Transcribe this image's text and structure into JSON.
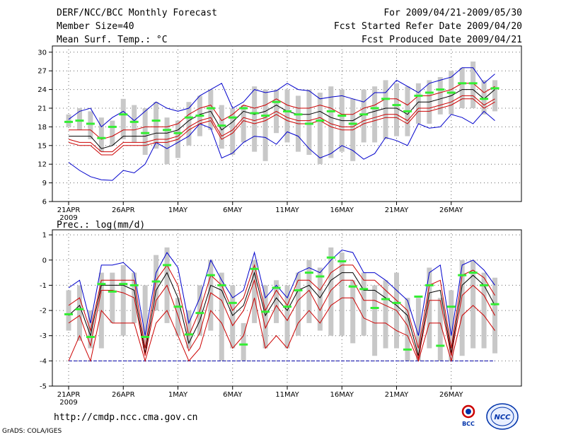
{
  "header": {
    "title": "DERF/NCC/BCC Monthly Forecast",
    "member_size": "Member Size=40",
    "variable": "Mean Surf. Temp.: °C",
    "period": "For 2009/04/21-2009/05/30",
    "refer_date": "Fcst Started Refer Date 2009/04/20",
    "produced_date": "Fcst Produced Date 2009/04/21"
  },
  "footer": {
    "url": "http://cmdp.ncc.cma.gov.cn",
    "credit": "GrADS: COLA/IGES",
    "logo_bcc": "BCC",
    "logo_ncc": "NCC"
  },
  "colors": {
    "ensemble_bar": "#c8c8c8",
    "mean_line": "#000000",
    "spread_line": "#cc0000",
    "envelope_line": "#0000cc",
    "marker": "#33ee33",
    "baseline": "#0000aa",
    "grid": "#666666"
  },
  "chart_data": [
    {
      "type": "line",
      "title": "Mean Surf. Temp.: °C",
      "ylim": [
        6,
        31
      ],
      "yticks": [
        "6",
        "9",
        "12",
        "15",
        "18",
        "21",
        "24",
        "27",
        "30"
      ],
      "ytick_values": [
        6,
        9,
        12,
        15,
        18,
        21,
        24,
        27,
        30
      ],
      "xtick_labels": [
        "21APR",
        "26APR",
        "1MAY",
        "6MAY",
        "11MAY",
        "16MAY",
        "21MAY",
        "26MAY"
      ],
      "xtick_days": [
        1,
        6,
        11,
        16,
        21,
        26,
        31,
        36
      ],
      "x_year_label": "2009",
      "x": [
        1,
        2,
        3,
        4,
        5,
        6,
        7,
        8,
        9,
        10,
        11,
        12,
        13,
        14,
        15,
        16,
        17,
        18,
        19,
        20,
        21,
        22,
        23,
        24,
        25,
        26,
        27,
        28,
        29,
        30,
        31,
        32,
        33,
        34,
        35,
        36,
        37,
        38,
        39,
        40
      ],
      "series": [
        {
          "name": "max",
          "values": [
            12.3,
            11.0,
            10.0,
            9.5,
            9.4,
            11.0,
            10.6,
            12.0,
            15.5,
            14.5,
            15.5,
            16.5,
            18.5,
            17.8,
            13.0,
            13.8,
            15.5,
            16.5,
            16.3,
            15.2,
            17.2,
            16.5,
            14.5,
            13.0,
            13.7,
            15.0,
            14.2,
            12.8,
            13.7,
            16.3,
            15.8,
            15.0,
            18.5,
            17.8,
            18.0,
            20.0,
            19.5,
            18.5,
            20.5,
            19.0
          ]
        },
        {
          "name": "envelope_high",
          "values": [
            19.2,
            20.5,
            21.0,
            18.0,
            19.5,
            20.5,
            19.0,
            20.5,
            22.0,
            21.0,
            20.5,
            21.0,
            23.0,
            24.0,
            25.0,
            21.0,
            22.0,
            24.0,
            23.5,
            23.8,
            25.0,
            24.0,
            23.8,
            22.5,
            22.8,
            23.0,
            22.5,
            22.0,
            23.5,
            23.5,
            25.5,
            24.5,
            23.5,
            25.0,
            25.5,
            26.0,
            27.5,
            27.5,
            25.0,
            26.5
          ]
        },
        {
          "name": "upper",
          "values": [
            17.5,
            17.5,
            17.5,
            16.0,
            16.5,
            17.5,
            17.5,
            18.0,
            18.0,
            18.0,
            18.5,
            20.0,
            21.0,
            21.5,
            19.0,
            20.0,
            21.5,
            21.0,
            21.5,
            22.5,
            21.5,
            21.0,
            21.0,
            21.5,
            21.0,
            20.0,
            20.0,
            21.0,
            21.5,
            22.5,
            22.5,
            21.5,
            23.0,
            23.0,
            23.5,
            24.0,
            25.0,
            25.0,
            23.5,
            24.5
          ]
        },
        {
          "name": "mean",
          "values": [
            16.5,
            16.5,
            16.5,
            14.5,
            15.0,
            16.5,
            16.5,
            16.5,
            17.0,
            17.0,
            17.5,
            19.0,
            20.0,
            20.5,
            17.5,
            18.8,
            20.5,
            20.0,
            20.5,
            21.5,
            20.5,
            20.0,
            20.0,
            20.5,
            19.5,
            19.0,
            19.0,
            20.0,
            20.5,
            21.0,
            21.0,
            20.0,
            22.0,
            22.0,
            22.5,
            23.0,
            24.0,
            24.0,
            22.5,
            24.0
          ]
        },
        {
          "name": "lower",
          "values": [
            16.0,
            15.5,
            15.5,
            14.0,
            14.0,
            15.5,
            15.5,
            15.5,
            16.0,
            16.0,
            16.5,
            18.0,
            19.0,
            19.5,
            16.5,
            17.5,
            19.5,
            19.0,
            19.5,
            20.5,
            19.5,
            19.0,
            19.0,
            19.5,
            18.5,
            18.0,
            18.0,
            19.0,
            19.5,
            20.0,
            20.0,
            19.0,
            21.0,
            21.0,
            21.5,
            22.0,
            23.0,
            23.0,
            21.5,
            22.5
          ]
        },
        {
          "name": "lowest",
          "values": [
            15.5,
            15.0,
            15.0,
            13.5,
            13.5,
            15.0,
            15.0,
            15.0,
            15.5,
            15.5,
            16.0,
            17.5,
            18.5,
            19.0,
            16.0,
            17.0,
            19.0,
            18.5,
            19.0,
            20.0,
            19.0,
            18.5,
            18.5,
            19.0,
            18.0,
            17.5,
            17.5,
            18.5,
            19.0,
            19.5,
            19.5,
            18.5,
            20.5,
            20.5,
            21.0,
            21.5,
            22.5,
            22.5,
            21.0,
            22.0
          ]
        }
      ],
      "markers": [
        18.8,
        19.0,
        18.5,
        16.2,
        18.0,
        20.0,
        18.8,
        17.0,
        19.0,
        17.5,
        17.0,
        19.5,
        19.8,
        21.0,
        18.2,
        19.5,
        21.0,
        20.2,
        19.8,
        22.0,
        20.5,
        20.0,
        18.5,
        19.0,
        20.5,
        19.8,
        18.5,
        20.0,
        21.0,
        22.5,
        21.5,
        20.5,
        23.0,
        23.5,
        24.0,
        23.5,
        25.0,
        25.0,
        22.5,
        24.2
      ],
      "bars": [
        [
          18.0,
          20.0
        ],
        [
          17.5,
          21.0
        ],
        [
          16.0,
          20.5
        ],
        [
          14.0,
          19.5
        ],
        [
          15.0,
          19.0
        ],
        [
          16.0,
          22.5
        ],
        [
          15.5,
          21.5
        ],
        [
          13.5,
          21.0
        ],
        [
          14.5,
          22.0
        ],
        [
          12.0,
          19.5
        ],
        [
          13.0,
          19.0
        ],
        [
          15.0,
          22.0
        ],
        [
          16.5,
          23.0
        ],
        [
          17.5,
          24.0
        ],
        [
          14.5,
          21.5
        ],
        [
          13.5,
          21.0
        ],
        [
          15.5,
          21.5
        ],
        [
          14.0,
          24.5
        ],
        [
          12.5,
          24.0
        ],
        [
          17.0,
          24.0
        ],
        [
          15.5,
          24.0
        ],
        [
          14.0,
          23.0
        ],
        [
          13.5,
          24.0
        ],
        [
          12.0,
          23.5
        ],
        [
          13.0,
          24.5
        ],
        [
          14.0,
          24.0
        ],
        [
          12.5,
          22.5
        ],
        [
          15.5,
          24.0
        ],
        [
          15.5,
          24.5
        ],
        [
          16.0,
          25.5
        ],
        [
          16.5,
          25.0
        ],
        [
          16.5,
          24.5
        ],
        [
          18.5,
          25.0
        ],
        [
          18.5,
          25.5
        ],
        [
          20.0,
          26.0
        ],
        [
          20.0,
          27.0
        ],
        [
          21.0,
          27.5
        ],
        [
          21.0,
          28.5
        ],
        [
          20.0,
          25.5
        ],
        [
          20.5,
          25.5
        ]
      ]
    },
    {
      "type": "line",
      "title": "Prec.: log(mm/d)",
      "ylim": [
        -5,
        1.2
      ],
      "yticks": [
        "-5",
        "-4",
        "-3",
        "-2",
        "-1",
        "0",
        "1"
      ],
      "ytick_values": [
        -5,
        -4,
        -3,
        -2,
        -1,
        0,
        1
      ],
      "xtick_labels": [
        "21APR",
        "26APR",
        "1MAY",
        "6MAY",
        "11MAY",
        "16MAY",
        "21MAY",
        "26MAY"
      ],
      "xtick_days": [
        1,
        6,
        11,
        16,
        21,
        26,
        31,
        36
      ],
      "x_year_label": "2009",
      "baseline": -4,
      "x": [
        1,
        2,
        3,
        4,
        5,
        6,
        7,
        8,
        9,
        10,
        11,
        12,
        13,
        14,
        15,
        16,
        17,
        18,
        19,
        20,
        21,
        22,
        23,
        24,
        25,
        26,
        27,
        28,
        29,
        30,
        31,
        32,
        33,
        34,
        35,
        36,
        37,
        38,
        39,
        40
      ],
      "series": [
        {
          "name": "envelope_high",
          "values": [
            -1.1,
            -0.8,
            -2.5,
            -0.2,
            -0.2,
            -0.1,
            -0.5,
            -3.0,
            -0.5,
            0.3,
            -0.3,
            -2.5,
            -1.5,
            0.0,
            -0.8,
            -1.5,
            -1.2,
            0.3,
            -1.5,
            -1.0,
            -1.5,
            -0.5,
            -0.3,
            -0.5,
            0.0,
            0.4,
            0.3,
            -0.5,
            -0.5,
            -0.8,
            -1.2,
            -1.6,
            -3.0,
            -0.5,
            -0.2,
            -3.0,
            -0.2,
            0.0,
            -0.4,
            -1.0
          ]
        },
        {
          "name": "upper",
          "values": [
            -1.8,
            -1.5,
            -2.8,
            -0.8,
            -0.8,
            -0.8,
            -0.8,
            -3.5,
            -0.8,
            -0.2,
            -1.0,
            -3.0,
            -2.0,
            -0.6,
            -1.0,
            -2.0,
            -1.5,
            -0.2,
            -2.0,
            -1.2,
            -1.8,
            -0.8,
            -0.8,
            -1.2,
            -0.5,
            -0.2,
            -0.2,
            -0.8,
            -0.8,
            -1.2,
            -1.6,
            -2.0,
            -3.5,
            -1.0,
            -0.8,
            -3.5,
            -0.6,
            -0.4,
            -0.7,
            -1.4
          ]
        },
        {
          "name": "mean",
          "values": [
            -2.2,
            -1.8,
            -3.0,
            -1.0,
            -1.0,
            -1.0,
            -1.2,
            -3.7,
            -1.2,
            -0.5,
            -1.5,
            -3.3,
            -2.4,
            -1.0,
            -1.2,
            -2.2,
            -1.8,
            -0.5,
            -2.2,
            -1.5,
            -2.0,
            -1.2,
            -1.0,
            -1.5,
            -0.8,
            -0.5,
            -0.5,
            -1.2,
            -1.2,
            -1.5,
            -1.8,
            -2.2,
            -3.8,
            -1.3,
            -1.2,
            -3.7,
            -1.0,
            -0.6,
            -1.0,
            -1.8
          ]
        },
        {
          "name": "lower",
          "values": [
            -2.5,
            -2.2,
            -3.4,
            -1.2,
            -1.2,
            -1.3,
            -1.5,
            -3.8,
            -1.6,
            -1.0,
            -2.2,
            -3.6,
            -2.9,
            -1.3,
            -1.6,
            -2.6,
            -2.0,
            -0.8,
            -2.7,
            -1.8,
            -2.4,
            -1.6,
            -1.2,
            -2.0,
            -1.2,
            -0.8,
            -0.8,
            -1.6,
            -1.6,
            -1.8,
            -2.0,
            -2.6,
            -3.9,
            -1.6,
            -1.6,
            -3.8,
            -1.4,
            -1.0,
            -1.4,
            -2.2
          ]
        },
        {
          "name": "lowest",
          "values": [
            -4.0,
            -3.0,
            -4.0,
            -2.0,
            -2.5,
            -2.5,
            -2.5,
            -4.0,
            -2.5,
            -2.0,
            -3.0,
            -4.0,
            -3.5,
            -2.0,
            -2.5,
            -3.5,
            -3.0,
            -1.5,
            -3.5,
            -3.0,
            -3.5,
            -2.5,
            -2.0,
            -2.5,
            -1.8,
            -1.5,
            -1.5,
            -2.3,
            -2.5,
            -2.5,
            -2.8,
            -3.0,
            -4.0,
            -2.5,
            -2.5,
            -4.0,
            -2.2,
            -1.8,
            -2.2,
            -2.8
          ]
        }
      ],
      "markers": [
        -2.15,
        -1.95,
        -3.05,
        -0.95,
        -1.25,
        -0.95,
        -1.0,
        -3.05,
        -0.85,
        -0.2,
        -1.85,
        -2.95,
        -2.1,
        -0.6,
        -1.0,
        -1.7,
        -3.35,
        -0.35,
        -2.05,
        -1.1,
        -1.85,
        -1.2,
        -0.5,
        -0.65,
        0.1,
        -0.05,
        -1.05,
        -1.15,
        -1.9,
        -1.55,
        -1.7,
        -3.55,
        -1.45,
        -1.0,
        -3.4,
        -1.85,
        -0.6,
        -0.5,
        -1.0,
        -1.75
      ],
      "bars": [
        [
          -2.8,
          -1.2
        ],
        [
          -3.2,
          -1.0
        ],
        [
          -3.5,
          -2.0
        ],
        [
          -3.5,
          -0.5
        ],
        [
          -2.5,
          -0.5
        ],
        [
          -3.0,
          -0.2
        ],
        [
          -2.5,
          -0.5
        ],
        [
          -3.5,
          -1.0
        ],
        [
          -2.0,
          0.2
        ],
        [
          -2.5,
          0.5
        ],
        [
          -3.0,
          -1.5
        ],
        [
          -3.5,
          -2.0
        ],
        [
          -3.0,
          -1.0
        ],
        [
          -2.8,
          0.0
        ],
        [
          -4.0,
          -0.5
        ],
        [
          -3.5,
          -1.0
        ],
        [
          -4.0,
          -2.5
        ],
        [
          -2.5,
          0.0
        ],
        [
          -3.5,
          -1.0
        ],
        [
          -2.5,
          -0.8
        ],
        [
          -3.5,
          -1.0
        ],
        [
          -3.0,
          -0.5
        ],
        [
          -2.5,
          0.0
        ],
        [
          -2.8,
          -0.3
        ],
        [
          -3.0,
          0.5
        ],
        [
          -3.0,
          0.3
        ],
        [
          -3.3,
          -0.8
        ],
        [
          -3.0,
          -0.5
        ],
        [
          -3.8,
          -1.0
        ],
        [
          -3.5,
          -0.8
        ],
        [
          -3.5,
          -0.5
        ],
        [
          -4.0,
          -1.5
        ],
        [
          -4.0,
          -1.5
        ],
        [
          -3.5,
          -0.3
        ],
        [
          -4.0,
          -1.5
        ],
        [
          -4.0,
          -1.2
        ],
        [
          -3.8,
          0.0
        ],
        [
          -3.5,
          0.0
        ],
        [
          -3.5,
          -0.5
        ],
        [
          -3.7,
          -0.7
        ]
      ]
    }
  ]
}
